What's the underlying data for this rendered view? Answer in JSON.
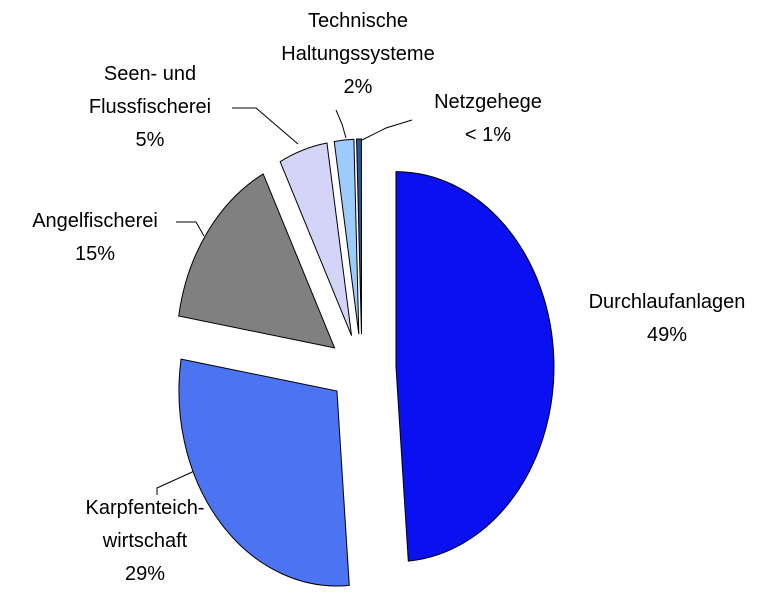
{
  "chart_data": {
    "type": "pie",
    "categories": [
      "Durchlaufanlagen",
      "Karpfenteich-\nwirtschaft",
      "Angelfischerei",
      "Seen- und\nFlussfischerei",
      "Technische\nHaltungssysteme",
      "Netzgehege"
    ],
    "values": [
      49,
      29,
      15,
      5,
      2,
      0.5
    ],
    "value_labels": [
      "49%",
      "29%",
      "15%",
      "5%",
      "2%",
      "< 1%"
    ],
    "colors": [
      "#0a10f0",
      "#4c74f2",
      "#808080",
      "#d4d4f8",
      "#9cccfc",
      "#2a55a0"
    ]
  }
}
